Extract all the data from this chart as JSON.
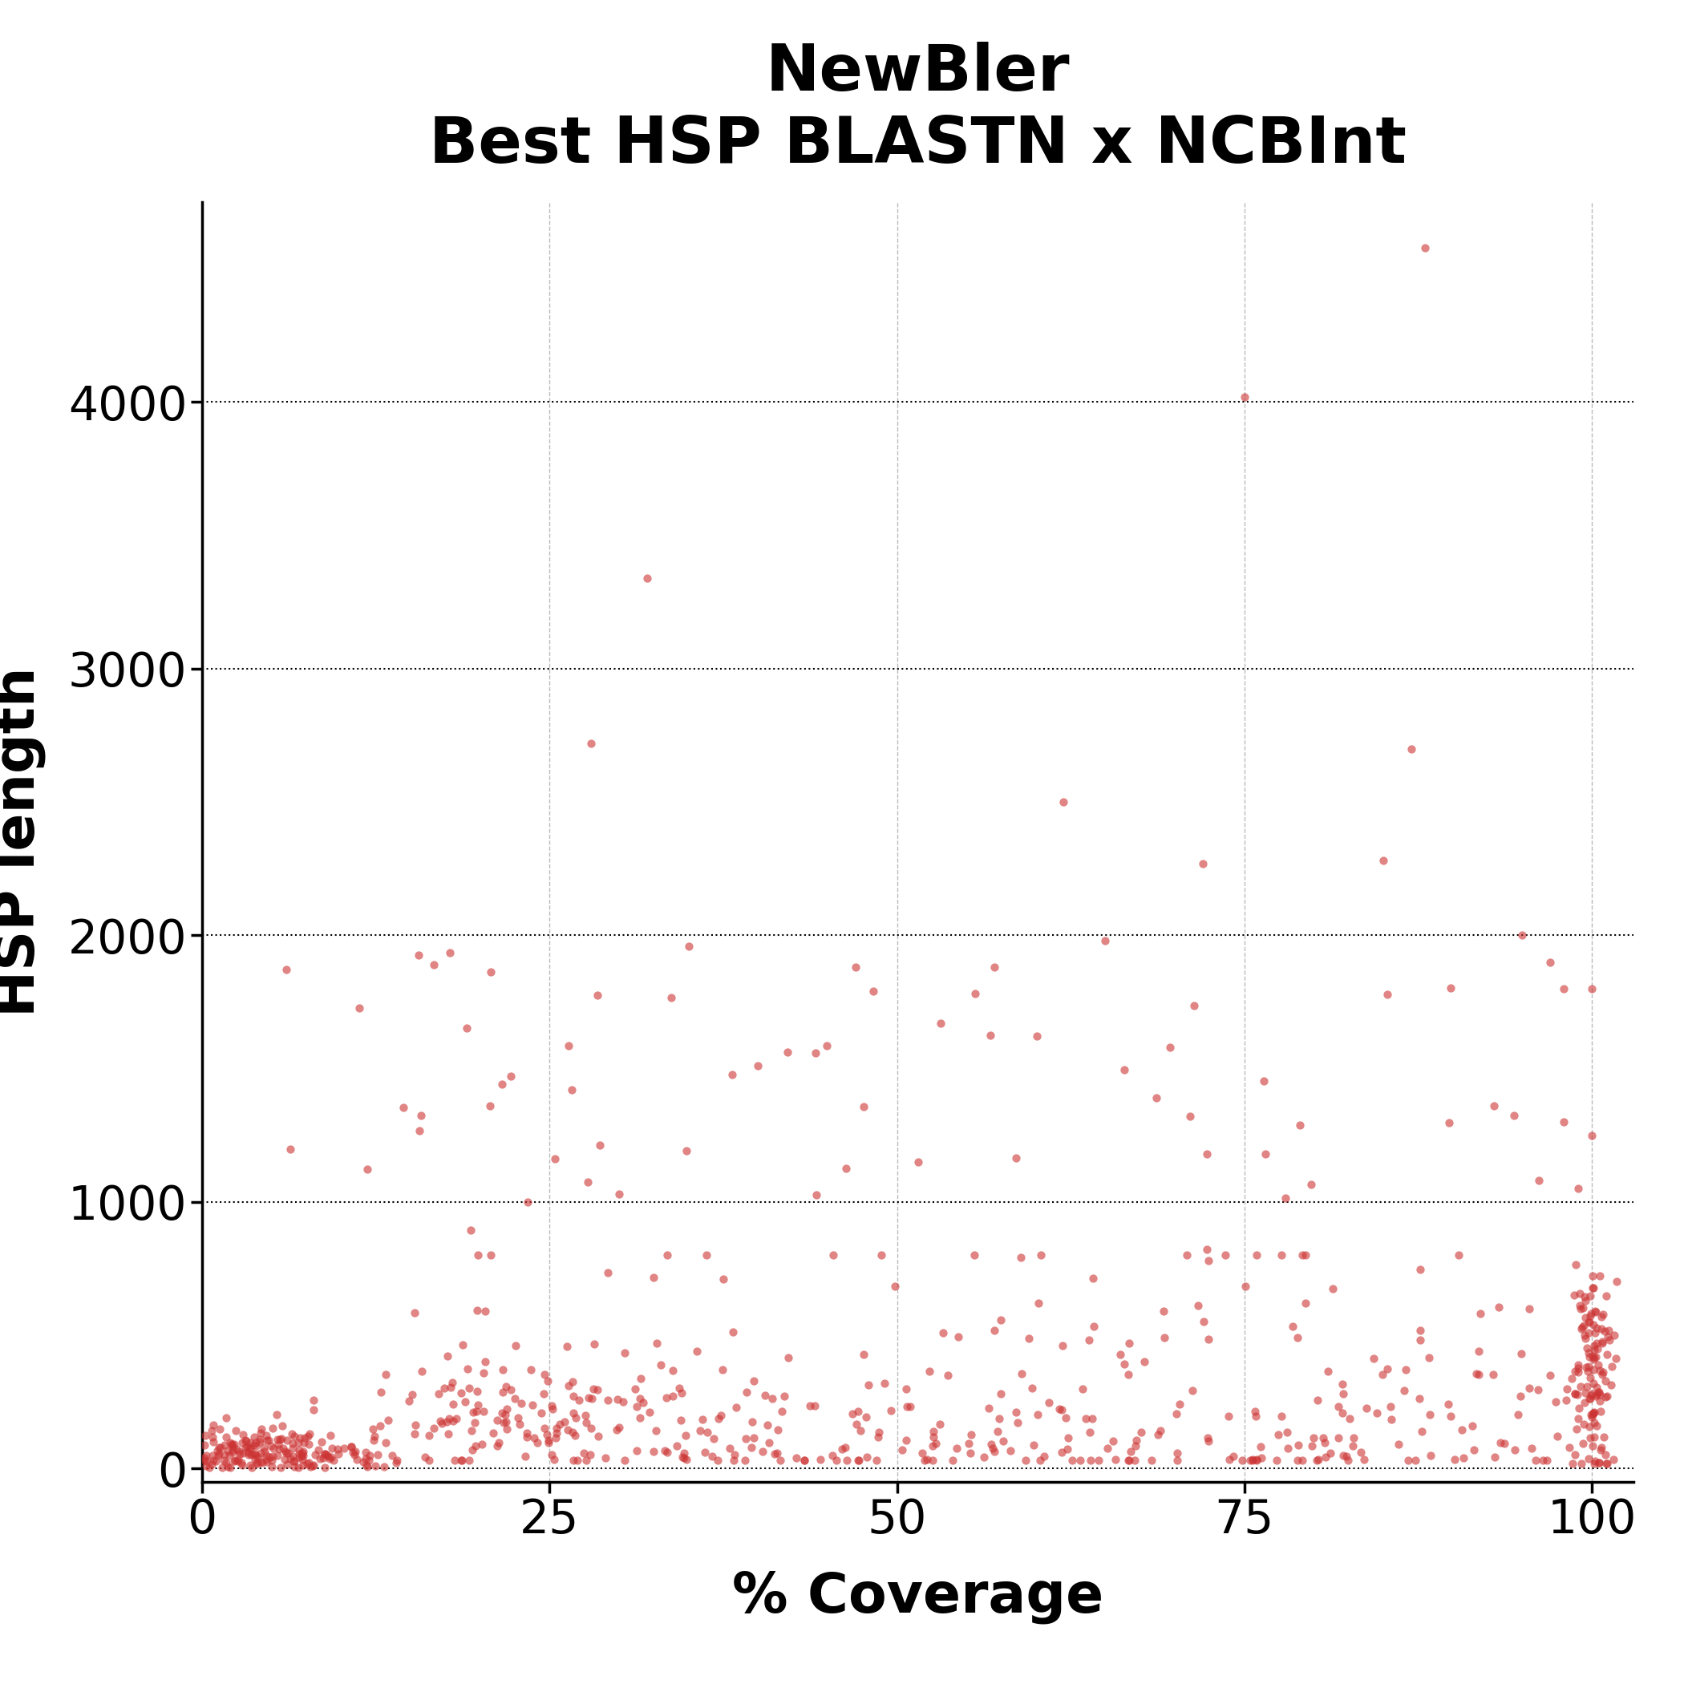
{
  "title_line1": "NewBler",
  "title_line2": "Best HSP BLASTN x NCBInt",
  "xlabel": "% Coverage",
  "ylabel": "HSP length",
  "xlim": [
    0,
    103
  ],
  "ylim": [
    -50,
    4750
  ],
  "xticks": [
    0,
    25,
    50,
    75,
    100
  ],
  "yticks": [
    0,
    1000,
    2000,
    3000,
    4000
  ],
  "dot_color": "#cc3333",
  "dot_alpha": 0.6,
  "dot_size": 55,
  "contour_color": "#1a2e4a",
  "contour_linewidth": 2.2,
  "bg_color": "#ffffff",
  "title_fontsize": 58,
  "axis_label_fontsize": 50,
  "tick_fontsize": 42,
  "seed": 7
}
